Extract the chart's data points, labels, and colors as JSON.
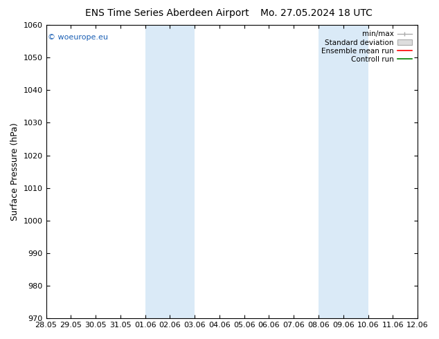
{
  "title_left": "ENS Time Series Aberdeen Airport",
  "title_right": "Mo. 27.05.2024 18 UTC",
  "ylabel": "Surface Pressure (hPa)",
  "ylim": [
    970,
    1060
  ],
  "yticks": [
    970,
    980,
    990,
    1000,
    1010,
    1020,
    1030,
    1040,
    1050,
    1060
  ],
  "xlim_start": 0,
  "xlim_end": 15,
  "xtick_labels": [
    "28.05",
    "29.05",
    "30.05",
    "31.05",
    "01.06",
    "02.06",
    "03.06",
    "04.06",
    "05.06",
    "06.06",
    "07.06",
    "08.06",
    "09.06",
    "10.06",
    "11.06",
    "12.06"
  ],
  "xtick_positions": [
    0,
    1,
    2,
    3,
    4,
    5,
    6,
    7,
    8,
    9,
    10,
    11,
    12,
    13,
    14,
    15
  ],
  "shaded_bands": [
    {
      "xmin": 4.0,
      "xmax": 6.0
    },
    {
      "xmin": 11.0,
      "xmax": 13.0
    }
  ],
  "shaded_color": "#daeaf7",
  "watermark": "© woeurope.eu",
  "legend_labels": [
    "min/max",
    "Standard deviation",
    "Ensemble mean run",
    "Controll run"
  ],
  "legend_colors": [
    "#999999",
    "#cccccc",
    "red",
    "green"
  ],
  "background_color": "#ffffff",
  "title_fontsize": 10,
  "tick_labelsize": 8,
  "ylabel_fontsize": 9,
  "watermark_fontsize": 8,
  "legend_fontsize": 7.5,
  "figsize": [
    6.34,
    4.9
  ],
  "dpi": 100
}
